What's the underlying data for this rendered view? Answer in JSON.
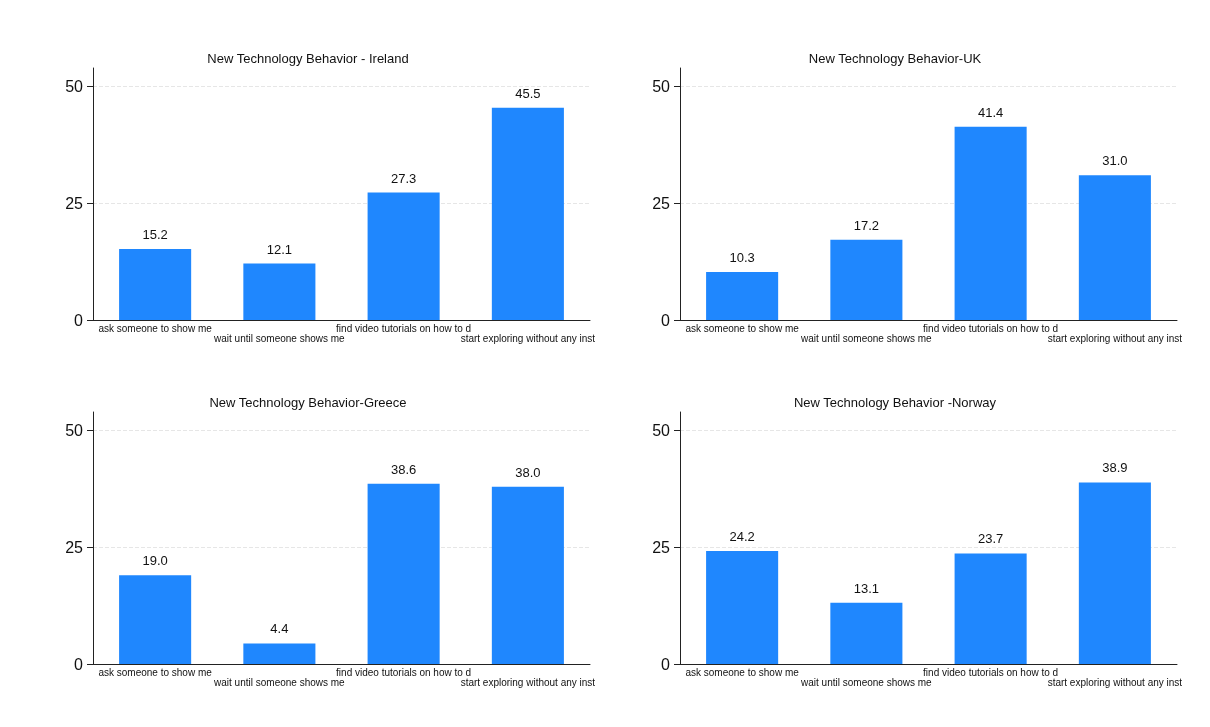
{
  "chart_data": [
    {
      "type": "bar",
      "title": "New Technology Behavior - Ireland",
      "categories": [
        "ask someone to show me",
        "wait until someone shows me",
        "find video tutorials on how to d",
        "start exploring without any inst"
      ],
      "values": [
        15.2,
        12.1,
        27.3,
        45.5
      ],
      "value_labels": [
        "15.2",
        "12.1",
        "27.3",
        "45.5"
      ],
      "color": "#1f87fe",
      "ylim": [
        0,
        54
      ],
      "yticks": [
        0,
        25,
        50
      ],
      "grid": "y"
    },
    {
      "type": "bar",
      "title": "New Technology Behavior-UK",
      "categories": [
        "ask someone to show me",
        "wait until someone shows me",
        "find video tutorials on how to d",
        "start exploring without any inst"
      ],
      "values": [
        10.3,
        17.2,
        41.4,
        31.0
      ],
      "value_labels": [
        "10.3",
        "17.2",
        "41.4",
        "31.0"
      ],
      "color": "#1f87fe",
      "ylim": [
        0,
        54
      ],
      "yticks": [
        0,
        25,
        50
      ],
      "grid": "y"
    },
    {
      "type": "bar",
      "title": "New Technology Behavior-Greece",
      "categories": [
        "ask someone to show me",
        "wait until someone shows me",
        "find video tutorials on how to d",
        "start exploring without any inst"
      ],
      "values": [
        19.0,
        4.4,
        38.6,
        38.0
      ],
      "value_labels": [
        "19.0",
        "4.4",
        "38.6",
        "38.0"
      ],
      "color": "#1f87fe",
      "ylim": [
        0,
        54
      ],
      "yticks": [
        0,
        25,
        50
      ],
      "grid": "y"
    },
    {
      "type": "bar",
      "title": "New Technology Behavior -Norway",
      "categories": [
        "ask someone to show me",
        "wait until someone shows me",
        "find video tutorials on how to d",
        "start exploring without any inst"
      ],
      "values": [
        24.2,
        13.1,
        23.7,
        38.9
      ],
      "value_labels": [
        "24.2",
        "13.1",
        "23.7",
        "38.9"
      ],
      "color": "#1f87fe",
      "ylim": [
        0,
        54
      ],
      "yticks": [
        0,
        25,
        50
      ],
      "grid": "y"
    }
  ]
}
